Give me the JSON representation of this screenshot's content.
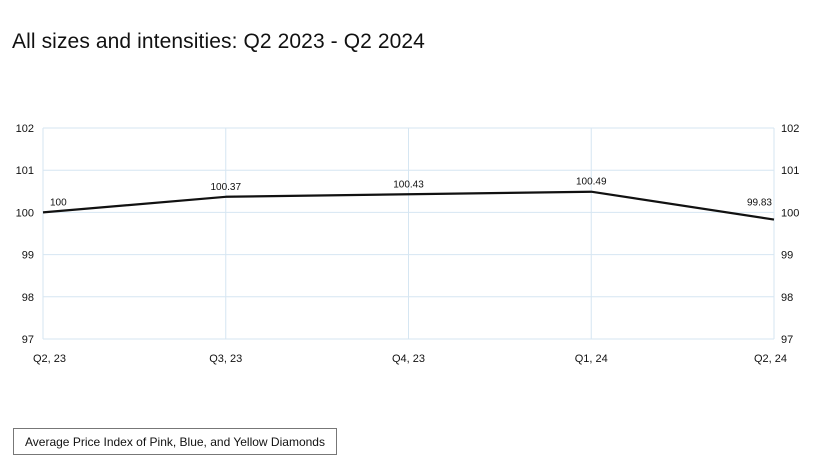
{
  "title": "All sizes and intensities: Q2 2023 - Q2 2024",
  "legend": {
    "label": "Average Price Index of Pink, Blue, and Yellow Diamonds"
  },
  "chart_data": {
    "type": "line",
    "categories": [
      "Q2, 23",
      "Q3, 23",
      "Q4, 23",
      "Q1, 24",
      "Q2, 24"
    ],
    "series": [
      {
        "values": [
          100,
          100.37,
          100.43,
          100.49,
          99.83
        ],
        "data_labels": [
          "100",
          "100.37",
          "100.43",
          "100.49",
          "99.83"
        ],
        "color": "#111111"
      }
    ],
    "ylim": [
      97,
      102
    ],
    "yticks": [
      97,
      98,
      99,
      100,
      101,
      102
    ],
    "ytick_labels": [
      "97",
      "98",
      "99",
      "100",
      "101",
      "102"
    ],
    "y_axis_sides": [
      "left",
      "right"
    ],
    "grid": true,
    "grid_color": "#d6e6f2",
    "legend_placement": "bottom-left",
    "title": "All sizes and intensities: Q2 2023 - Q2 2024"
  }
}
